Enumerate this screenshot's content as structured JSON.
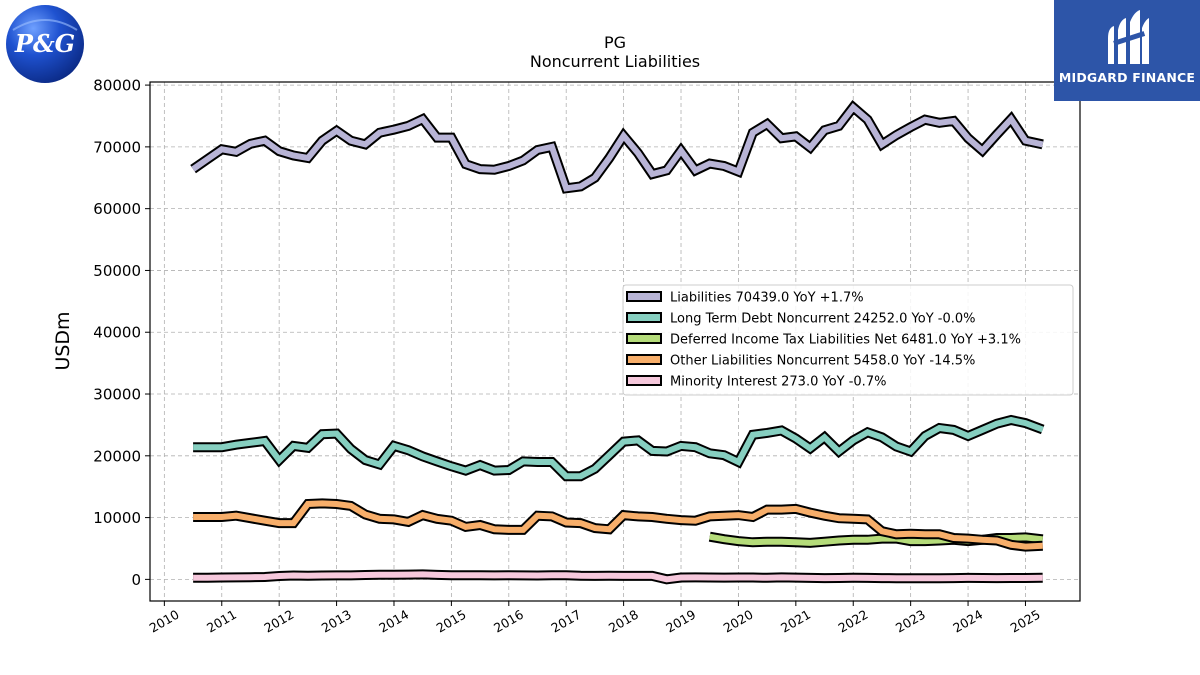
{
  "logos": {
    "left": {
      "text": "P&G",
      "color": "#1a3a9e"
    },
    "right": {
      "text": "MIDGARD FINANCE",
      "color": "#2d55a8"
    }
  },
  "chart_data": {
    "type": "line",
    "title": "PG",
    "subtitle": "Noncurrent  Liabilities",
    "xlabel": "",
    "ylabel": "USDm",
    "xlim": [
      2009.75,
      2025.95
    ],
    "ylim": [
      -3500,
      80500
    ],
    "xticks": [
      "2010",
      "2011",
      "2012",
      "2013",
      "2014",
      "2015",
      "2016",
      "2017",
      "2018",
      "2019",
      "2020",
      "2021",
      "2022",
      "2023",
      "2024",
      "2025"
    ],
    "yticks": [
      "0",
      "10000",
      "20000",
      "30000",
      "40000",
      "50000",
      "60000",
      "70000",
      "80000"
    ],
    "grid": true,
    "legend_position": "center-right",
    "series": [
      {
        "name": "Liabilities  70439.0 YoY +1.7%",
        "color": "#b8b4d6",
        "x": [
          2010.5,
          2010.75,
          2011.0,
          2011.25,
          2011.5,
          2011.75,
          2012.0,
          2012.25,
          2012.5,
          2012.75,
          2013.0,
          2013.25,
          2013.5,
          2013.75,
          2014.0,
          2014.25,
          2014.5,
          2014.75,
          2015.0,
          2015.25,
          2015.5,
          2015.75,
          2016.0,
          2016.25,
          2016.5,
          2016.75,
          2017.0,
          2017.25,
          2017.5,
          2017.75,
          2018.0,
          2018.25,
          2018.5,
          2018.75,
          2019.0,
          2019.25,
          2019.5,
          2019.75,
          2020.0,
          2020.25,
          2020.5,
          2020.75,
          2021.0,
          2021.25,
          2021.5,
          2021.75,
          2022.0,
          2022.25,
          2022.5,
          2022.75,
          2023.0,
          2023.25,
          2023.5,
          2023.75,
          2024.0,
          2024.25,
          2024.5,
          2024.75,
          2025.0,
          2025.3
        ],
        "values": [
          66400,
          68000,
          69600,
          69200,
          70500,
          71000,
          69300,
          68600,
          68200,
          71000,
          72600,
          71000,
          70400,
          72300,
          72800,
          73400,
          74500,
          71500,
          71500,
          67200,
          66400,
          66300,
          66900,
          67800,
          69500,
          70000,
          63300,
          63600,
          65000,
          68200,
          71800,
          69000,
          65600,
          66200,
          69400,
          66200,
          67300,
          66900,
          66000,
          72300,
          73700,
          71400,
          71700,
          69900,
          72700,
          73400,
          76400,
          74400,
          70400,
          71900,
          73200,
          74400,
          73900,
          74200,
          71400,
          69400,
          72000,
          74500,
          71000,
          70400
        ]
      },
      {
        "name": "Long Term Debt Noncurrent  24252.0 YoY -0.0%",
        "color": "#86cfc0",
        "x": [
          2010.5,
          2010.75,
          2011.0,
          2011.25,
          2011.5,
          2011.75,
          2012.0,
          2012.25,
          2012.5,
          2012.75,
          2013.0,
          2013.25,
          2013.5,
          2013.75,
          2014.0,
          2014.25,
          2014.5,
          2014.75,
          2015.0,
          2015.25,
          2015.5,
          2015.75,
          2016.0,
          2016.25,
          2016.5,
          2016.75,
          2017.0,
          2017.25,
          2017.5,
          2017.75,
          2018.0,
          2018.25,
          2018.5,
          2018.75,
          2019.0,
          2019.25,
          2019.5,
          2019.75,
          2020.0,
          2020.25,
          2020.5,
          2020.75,
          2021.0,
          2021.25,
          2021.5,
          2021.75,
          2022.0,
          2022.25,
          2022.5,
          2022.75,
          2023.0,
          2023.25,
          2023.5,
          2023.75,
          2024.0,
          2024.25,
          2024.5,
          2024.75,
          2025.0,
          2025.3
        ],
        "values": [
          21400,
          21400,
          21400,
          21800,
          22100,
          22400,
          19300,
          21600,
          21300,
          23500,
          23600,
          21100,
          19300,
          18600,
          21600,
          20900,
          19900,
          19100,
          18300,
          17600,
          18500,
          17600,
          17700,
          19100,
          19000,
          19000,
          16700,
          16700,
          17900,
          20100,
          22300,
          22500,
          20800,
          20700,
          21600,
          21400,
          20400,
          20100,
          19000,
          23400,
          23700,
          24100,
          22800,
          21200,
          23000,
          20700,
          22500,
          23800,
          23000,
          21500,
          20700,
          23200,
          24500,
          24200,
          23200,
          24200,
          25200,
          25800,
          25300,
          24252
        ]
      },
      {
        "name": "Deferred Income Tax Liabilities Net  6481.0 YoY +3.1%",
        "color": "#b5dc7a",
        "x": [
          2019.5,
          2019.75,
          2020.0,
          2020.25,
          2020.5,
          2020.75,
          2021.0,
          2021.25,
          2021.5,
          2021.75,
          2022.0,
          2022.25,
          2022.5,
          2022.75,
          2023.0,
          2023.25,
          2023.5,
          2023.75,
          2024.0,
          2024.25,
          2024.5,
          2024.75,
          2025.0,
          2025.3
        ],
        "values": [
          6900,
          6500,
          6200,
          6000,
          6100,
          6100,
          6000,
          5900,
          6100,
          6300,
          6400,
          6400,
          6600,
          6600,
          6200,
          6200,
          6300,
          6400,
          6200,
          6400,
          6700,
          6700,
          6800,
          6481
        ]
      },
      {
        "name": "Other Liabilities Noncurrent  5458.0 YoY -14.5%",
        "color": "#f7ae6a",
        "x": [
          2010.5,
          2010.75,
          2011.0,
          2011.25,
          2011.5,
          2011.75,
          2012.0,
          2012.25,
          2012.5,
          2012.75,
          2013.0,
          2013.25,
          2013.5,
          2013.75,
          2014.0,
          2014.25,
          2014.5,
          2014.75,
          2015.0,
          2015.25,
          2015.5,
          2015.75,
          2016.0,
          2016.25,
          2016.5,
          2016.75,
          2017.0,
          2017.25,
          2017.5,
          2017.75,
          2018.0,
          2018.25,
          2018.5,
          2018.75,
          2019.0,
          2019.25,
          2019.5,
          2019.75,
          2020.0,
          2020.25,
          2020.5,
          2020.75,
          2021.0,
          2021.25,
          2021.5,
          2021.75,
          2022.0,
          2022.25,
          2022.5,
          2022.75,
          2023.0,
          2023.25,
          2023.5,
          2023.75,
          2024.0,
          2024.25,
          2024.5,
          2024.75,
          2025.0,
          2025.3
        ],
        "values": [
          10100,
          10100,
          10100,
          10300,
          9900,
          9500,
          9100,
          9100,
          12200,
          12300,
          12200,
          11900,
          10500,
          9800,
          9700,
          9300,
          10400,
          9800,
          9500,
          8500,
          8800,
          8100,
          8000,
          8000,
          10300,
          10200,
          9200,
          9100,
          8300,
          8100,
          10400,
          10200,
          10100,
          9800,
          9600,
          9500,
          10200,
          10300,
          10400,
          10100,
          11300,
          11300,
          11400,
          10800,
          10300,
          9900,
          9800,
          9700,
          7800,
          7300,
          7400,
          7300,
          7300,
          6700,
          6600,
          6400,
          6300,
          5600,
          5300,
          5458
        ]
      },
      {
        "name": "Minority Interest  273.0 YoY -0.7%",
        "color": "#f6c8dc",
        "x": [
          2010.5,
          2010.75,
          2011.0,
          2011.25,
          2011.5,
          2011.75,
          2012.0,
          2012.25,
          2012.5,
          2012.75,
          2013.0,
          2013.25,
          2013.5,
          2013.75,
          2014.0,
          2014.25,
          2014.5,
          2014.75,
          2015.0,
          2015.25,
          2015.5,
          2015.75,
          2016.0,
          2016.25,
          2016.5,
          2016.75,
          2017.0,
          2017.25,
          2017.5,
          2017.75,
          2018.0,
          2018.25,
          2018.5,
          2018.75,
          2019.0,
          2019.25,
          2019.5,
          2019.75,
          2020.0,
          2020.25,
          2020.5,
          2020.75,
          2021.0,
          2021.25,
          2021.5,
          2021.75,
          2022.0,
          2022.25,
          2022.5,
          2022.75,
          2023.0,
          2023.25,
          2023.5,
          2023.75,
          2024.0,
          2024.25,
          2024.5,
          2024.75,
          2025.0,
          2025.3
        ],
        "values": [
          250,
          270,
          300,
          320,
          350,
          380,
          550,
          620,
          600,
          620,
          650,
          640,
          700,
          740,
          760,
          780,
          800,
          720,
          680,
          660,
          660,
          640,
          660,
          640,
          620,
          660,
          660,
          580,
          560,
          580,
          560,
          570,
          560,
          20,
          300,
          320,
          300,
          280,
          300,
          300,
          260,
          320,
          290,
          240,
          200,
          220,
          260,
          240,
          200,
          190,
          190,
          190,
          190,
          200,
          240,
          230,
          200,
          230,
          230,
          273
        ]
      }
    ]
  }
}
